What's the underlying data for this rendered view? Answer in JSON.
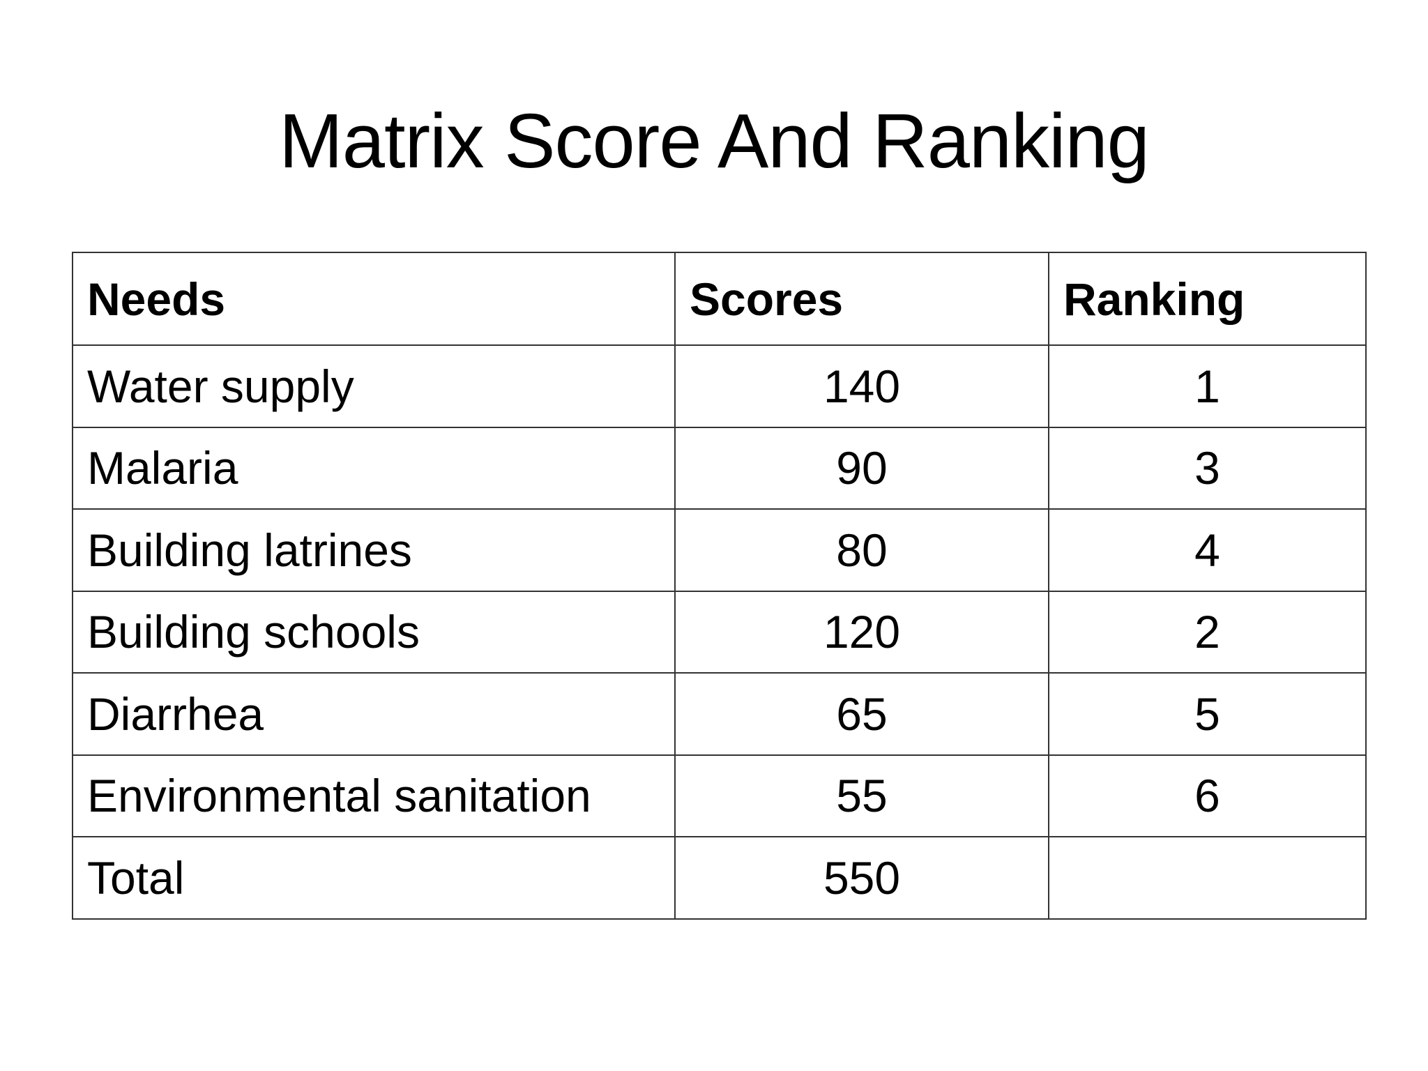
{
  "slide": {
    "title": "Matrix Score And Ranking"
  },
  "table": {
    "headers": [
      "Needs",
      "Scores",
      "Ranking"
    ],
    "rows": [
      {
        "need": "Water supply",
        "score": "140",
        "rank": "1"
      },
      {
        "need": "Malaria",
        "score": "90",
        "rank": "3"
      },
      {
        "need": "Building latrines",
        "score": "80",
        "rank": "4"
      },
      {
        "need": "Building schools",
        "score": "120",
        "rank": "2"
      },
      {
        "need": "Diarrhea",
        "score": "65",
        "rank": "5"
      },
      {
        "need": "Environmental sanitation",
        "score": "55",
        "rank": "6"
      },
      {
        "need": "Total",
        "score": "550",
        "rank": ""
      }
    ]
  }
}
